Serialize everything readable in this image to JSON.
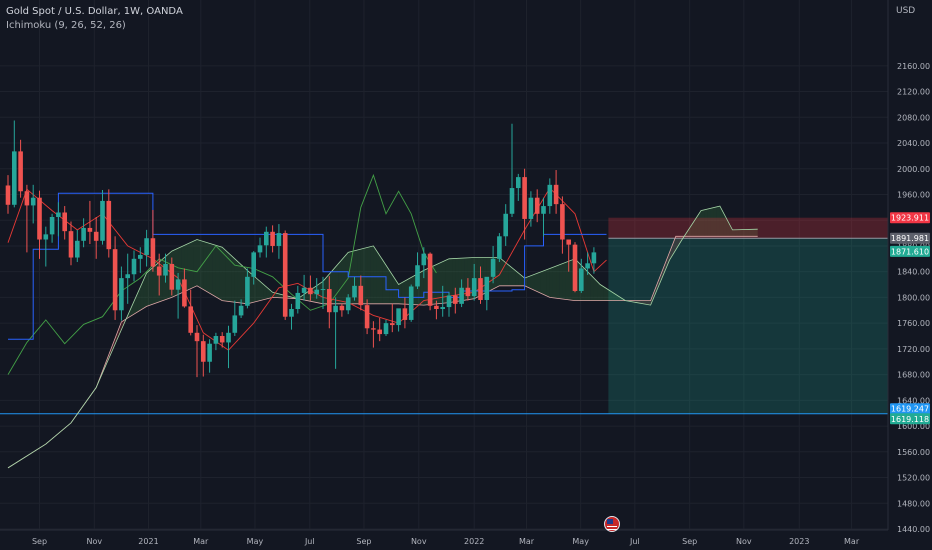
{
  "header": {
    "instrument": "Gold Spot / U.S. Dollar, 1W, OANDA",
    "indicator": "Ichimoku (9, 26, 52, 26)"
  },
  "price_axis": {
    "currency": "USD"
  },
  "colors": {
    "background": "#131722",
    "up_candle": "#26a69a",
    "down_candle": "#ef5350",
    "kijun": "#2962ff",
    "tenkan": "#e53935",
    "span_a": "#a5d6a7",
    "span_b": "#e0a8a8",
    "chikou": "#43a047",
    "target_zone": "#22ab94",
    "stop_zone": "#f23645",
    "entry_label": "#5d606b",
    "alert_line": "#2196f3"
  },
  "chart_data": {
    "type": "candlestick",
    "title": "Gold Spot / U.S. Dollar, 1W, OANDA",
    "indicator": "Ichimoku (9, 26, 52, 26)",
    "ylabel": "USD",
    "ylim": [
      1425,
      2180
    ],
    "yticks": [
      1440,
      1480,
      1520,
      1560,
      1600,
      1640,
      1680,
      1720,
      1760,
      1800,
      1840,
      1880,
      1920,
      1960,
      2000,
      2040,
      2080,
      2120,
      2160
    ],
    "xticks": [
      {
        "label": "Sep",
        "x": 5
      },
      {
        "label": "Nov",
        "x": 13.7
      },
      {
        "label": "2021",
        "x": 22.3
      },
      {
        "label": "Mar",
        "x": 30.6
      },
      {
        "label": "May",
        "x": 39.2
      },
      {
        "label": "Jul",
        "x": 47.9
      },
      {
        "label": "Sep",
        "x": 56.5
      },
      {
        "label": "Nov",
        "x": 65.2
      },
      {
        "label": "2022",
        "x": 74
      },
      {
        "label": "Mar",
        "x": 82.3
      },
      {
        "label": "May",
        "x": 90.9
      },
      {
        "label": "Jul",
        "x": 99.5
      },
      {
        "label": "Sep",
        "x": 108.2
      },
      {
        "label": "Nov",
        "x": 116.8
      },
      {
        "label": "2023",
        "x": 125.6
      },
      {
        "label": "Mar",
        "x": 133.9
      }
    ],
    "xlim": [
      0,
      140
    ],
    "candles": [
      [
        1974,
        1990,
        1930,
        1944
      ],
      [
        1944,
        2075,
        1940,
        2027
      ],
      [
        2027,
        2045,
        1955,
        1965
      ],
      [
        1965,
        1975,
        1870,
        1943
      ],
      [
        1943,
        1975,
        1915,
        1955
      ],
      [
        1955,
        1966,
        1860,
        1890
      ],
      [
        1890,
        1910,
        1848,
        1898
      ],
      [
        1898,
        1930,
        1885,
        1925
      ],
      [
        1925,
        1948,
        1895,
        1932
      ],
      [
        1932,
        1942,
        1890,
        1903
      ],
      [
        1903,
        1918,
        1850,
        1862
      ],
      [
        1862,
        1905,
        1855,
        1888
      ],
      [
        1888,
        1923,
        1878,
        1908
      ],
      [
        1908,
        1950,
        1883,
        1902
      ],
      [
        1902,
        1925,
        1860,
        1888
      ],
      [
        1888,
        1967,
        1882,
        1950
      ],
      [
        1950,
        1968,
        1862,
        1875
      ],
      [
        1875,
        1895,
        1765,
        1780
      ],
      [
        1780,
        1848,
        1764,
        1830
      ],
      [
        1830,
        1868,
        1790,
        1836
      ],
      [
        1836,
        1873,
        1825,
        1860
      ],
      [
        1860,
        1878,
        1838,
        1866
      ],
      [
        1866,
        1905,
        1848,
        1892
      ],
      [
        1892,
        1936,
        1840,
        1848
      ],
      [
        1848,
        1868,
        1803,
        1834
      ],
      [
        1834,
        1868,
        1823,
        1852
      ],
      [
        1852,
        1862,
        1803,
        1812
      ],
      [
        1812,
        1838,
        1767,
        1828
      ],
      [
        1828,
        1845,
        1784,
        1786
      ],
      [
        1786,
        1812,
        1741,
        1745
      ],
      [
        1745,
        1757,
        1676,
        1732
      ],
      [
        1732,
        1742,
        1677,
        1700
      ],
      [
        1700,
        1735,
        1683,
        1728
      ],
      [
        1728,
        1745,
        1718,
        1740
      ],
      [
        1740,
        1746,
        1722,
        1730
      ],
      [
        1730,
        1756,
        1690,
        1745
      ],
      [
        1745,
        1795,
        1740,
        1772
      ],
      [
        1772,
        1797,
        1768,
        1787
      ],
      [
        1787,
        1845,
        1783,
        1832
      ],
      [
        1832,
        1872,
        1820,
        1870
      ],
      [
        1870,
        1893,
        1862,
        1881
      ],
      [
        1881,
        1910,
        1862,
        1902
      ],
      [
        1902,
        1912,
        1870,
        1880
      ],
      [
        1880,
        1914,
        1860,
        1900
      ],
      [
        1900,
        1904,
        1765,
        1770
      ],
      [
        1770,
        1790,
        1750,
        1782
      ],
      [
        1782,
        1818,
        1775,
        1807
      ],
      [
        1807,
        1835,
        1795,
        1815
      ],
      [
        1815,
        1834,
        1795,
        1805
      ],
      [
        1805,
        1830,
        1798,
        1812
      ],
      [
        1812,
        1832,
        1782,
        1813
      ],
      [
        1813,
        1833,
        1752,
        1777
      ],
      [
        1777,
        1800,
        1689,
        1787
      ],
      [
        1787,
        1790,
        1770,
        1780
      ],
      [
        1780,
        1805,
        1774,
        1800
      ],
      [
        1800,
        1832,
        1795,
        1818
      ],
      [
        1818,
        1834,
        1780,
        1788
      ],
      [
        1788,
        1797,
        1743,
        1752
      ],
      [
        1752,
        1763,
        1722,
        1750
      ],
      [
        1750,
        1768,
        1732,
        1743
      ],
      [
        1743,
        1765,
        1740,
        1760
      ],
      [
        1760,
        1790,
        1746,
        1757
      ],
      [
        1757,
        1782,
        1747,
        1783
      ],
      [
        1783,
        1800,
        1752,
        1765
      ],
      [
        1765,
        1820,
        1762,
        1817
      ],
      [
        1817,
        1870,
        1813,
        1850
      ],
      [
        1850,
        1878,
        1830,
        1868
      ],
      [
        1868,
        1870,
        1780,
        1787
      ],
      [
        1787,
        1795,
        1766,
        1782
      ],
      [
        1782,
        1818,
        1770,
        1785
      ],
      [
        1785,
        1808,
        1770,
        1803
      ],
      [
        1803,
        1815,
        1775,
        1790
      ],
      [
        1790,
        1828,
        1785,
        1815
      ],
      [
        1815,
        1830,
        1795,
        1802
      ],
      [
        1802,
        1852,
        1795,
        1830
      ],
      [
        1830,
        1848,
        1790,
        1796
      ],
      [
        1796,
        1830,
        1780,
        1832
      ],
      [
        1832,
        1880,
        1822,
        1860
      ],
      [
        1860,
        1900,
        1855,
        1895
      ],
      [
        1895,
        1945,
        1880,
        1930
      ],
      [
        1930,
        2070,
        1925,
        1970
      ],
      [
        1970,
        1992,
        1950,
        1987
      ],
      [
        1987,
        2000,
        1890,
        1922
      ],
      [
        1922,
        1965,
        1910,
        1955
      ],
      [
        1955,
        1968,
        1917,
        1930
      ],
      [
        1930,
        1955,
        1895,
        1942
      ],
      [
        1942,
        1985,
        1930,
        1975
      ],
      [
        1975,
        1998,
        1930,
        1945
      ],
      [
        1945,
        1957,
        1868,
        1890
      ],
      [
        1890,
        1890,
        1840,
        1882
      ],
      [
        1882,
        1886,
        1808,
        1810
      ],
      [
        1810,
        1860,
        1807,
        1845
      ],
      [
        1845,
        1870,
        1835,
        1853
      ],
      [
        1853,
        1878,
        1837,
        1870
      ]
    ],
    "ichimoku": {
      "tenkan": [
        [
          0,
          1885
        ],
        [
          3,
          1968
        ],
        [
          7,
          1935
        ],
        [
          11,
          1905
        ],
        [
          15,
          1930
        ],
        [
          19,
          1880
        ],
        [
          23,
          1860
        ],
        [
          27,
          1830
        ],
        [
          31,
          1745
        ],
        [
          35,
          1718
        ],
        [
          39,
          1760
        ],
        [
          43,
          1815
        ],
        [
          46,
          1822
        ],
        [
          50,
          1800
        ],
        [
          54,
          1792
        ],
        [
          58,
          1772
        ],
        [
          62,
          1760
        ],
        [
          66,
          1795
        ],
        [
          70,
          1802
        ],
        [
          74,
          1808
        ],
        [
          78,
          1835
        ],
        [
          82,
          1905
        ],
        [
          86,
          1970
        ],
        [
          90,
          1930
        ],
        [
          93,
          1840
        ],
        [
          95,
          1858
        ]
      ],
      "kijun": [
        [
          0,
          1735
        ],
        [
          4,
          1875
        ],
        [
          8,
          1962
        ],
        [
          21,
          1962
        ],
        [
          23,
          1898
        ],
        [
          49,
          1898
        ],
        [
          50,
          1840
        ],
        [
          54,
          1832
        ],
        [
          60,
          1812
        ],
        [
          62,
          1800
        ],
        [
          66,
          1808
        ],
        [
          70,
          1800
        ],
        [
          72,
          1810
        ],
        [
          80,
          1812
        ],
        [
          82,
          1880
        ],
        [
          85,
          1898
        ],
        [
          95,
          1898
        ]
      ],
      "span_a": [
        [
          0,
          1535
        ],
        [
          6,
          1572
        ],
        [
          10,
          1605
        ],
        [
          14,
          1660
        ],
        [
          18,
          1750
        ],
        [
          22,
          1838
        ],
        [
          26,
          1872
        ],
        [
          30,
          1890
        ],
        [
          34,
          1878
        ],
        [
          38,
          1842
        ],
        [
          42,
          1808
        ],
        [
          46,
          1798
        ],
        [
          50,
          1825
        ],
        [
          54,
          1870
        ],
        [
          58,
          1880
        ],
        [
          62,
          1820
        ],
        [
          66,
          1842
        ],
        [
          70,
          1860
        ],
        [
          74,
          1862
        ],
        [
          78,
          1862
        ],
        [
          82,
          1830
        ],
        [
          86,
          1845
        ],
        [
          90,
          1860
        ],
        [
          94,
          1820
        ],
        [
          98,
          1795
        ],
        [
          102,
          1788
        ],
        [
          105,
          1858
        ],
        [
          107,
          1890
        ],
        [
          110,
          1935
        ],
        [
          113,
          1942
        ],
        [
          115,
          1905
        ],
        [
          119,
          1906
        ]
      ],
      "span_b": [
        [
          0,
          1535
        ],
        [
          6,
          1572
        ],
        [
          10,
          1605
        ],
        [
          14,
          1660
        ],
        [
          18,
          1762
        ],
        [
          22,
          1786
        ],
        [
          26,
          1800
        ],
        [
          30,
          1818
        ],
        [
          34,
          1795
        ],
        [
          38,
          1790
        ],
        [
          42,
          1800
        ],
        [
          46,
          1798
        ],
        [
          50,
          1790
        ],
        [
          54,
          1790
        ],
        [
          58,
          1790
        ],
        [
          62,
          1790
        ],
        [
          66,
          1788
        ],
        [
          70,
          1792
        ],
        [
          74,
          1798
        ],
        [
          78,
          1818
        ],
        [
          82,
          1818
        ],
        [
          86,
          1800
        ],
        [
          90,
          1795
        ],
        [
          94,
          1795
        ],
        [
          98,
          1795
        ],
        [
          102,
          1795
        ],
        [
          106,
          1895
        ],
        [
          119,
          1895
        ]
      ],
      "chikou": [
        [
          0,
          1680
        ],
        [
          3,
          1730
        ],
        [
          6,
          1765
        ],
        [
          9,
          1728
        ],
        [
          12,
          1758
        ],
        [
          15,
          1770
        ],
        [
          18,
          1810
        ],
        [
          21,
          1830
        ],
        [
          24,
          1860
        ],
        [
          27,
          1846
        ],
        [
          30,
          1840
        ],
        [
          33,
          1880
        ],
        [
          36,
          1850
        ],
        [
          39,
          1845
        ],
        [
          42,
          1832
        ],
        [
          45,
          1805
        ],
        [
          48,
          1780
        ],
        [
          51,
          1790
        ],
        [
          54,
          1830
        ],
        [
          56,
          1940
        ],
        [
          58,
          1990
        ],
        [
          60,
          1930
        ],
        [
          62,
          1965
        ],
        [
          64,
          1930
        ],
        [
          66,
          1870
        ],
        [
          68,
          1838
        ]
      ]
    },
    "position": {
      "stop": 1923.911,
      "entry": 1891.981,
      "target": 1619.118,
      "current_price": 1871.61,
      "alert_line": 1619.247
    },
    "price_labels": [
      {
        "value": "1923.911",
        "kind": "stop"
      },
      {
        "value": "1891.981",
        "kind": "entry"
      },
      {
        "value": "1871.610",
        "kind": "last"
      },
      {
        "value": "1619.247",
        "kind": "alert"
      },
      {
        "value": "1619.118",
        "kind": "target"
      }
    ]
  }
}
